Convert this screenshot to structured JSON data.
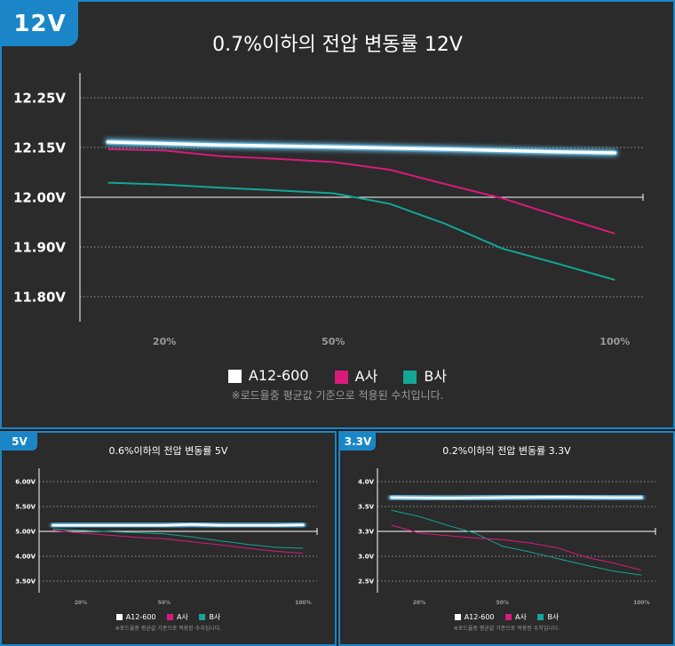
{
  "colors": {
    "a12": "#ffffff",
    "a12_glow": "#6fd0ff",
    "a_company": "#d81b7a",
    "b_company": "#13a596",
    "grid": "#bbbbbb",
    "badge": "#1a86c8",
    "text": "#ffffff",
    "muted": "#9a9a9a"
  },
  "legend": {
    "a12": "A12-600",
    "a_company": "A사",
    "b_company": "B사"
  },
  "footnote": "※로드율중 평균값 기준으로 적용된 수치입니다.",
  "panels": {
    "v12": {
      "badge": "12V",
      "title": "0.7%이하의 전압 변동률 12V"
    },
    "v5": {
      "badge": "5V",
      "title": "0.6%이하의 전압 변동률 5V"
    },
    "v33": {
      "badge": "3.3V",
      "title": "0.2%이하의 전압 변동률 3.3V"
    }
  },
  "chart_data": [
    {
      "type": "line",
      "title": "0.7%이하의 전압 변동률 12V",
      "y_ticks": [
        "12.25V",
        "12.15V",
        "12.00V",
        "11.90V",
        "11.80V"
      ],
      "y_tick_values": [
        12.25,
        12.15,
        12.0,
        11.9,
        11.8
      ],
      "x_ticks": [
        "20%",
        "50%",
        "100%"
      ],
      "x_tick_values": [
        20,
        50,
        100
      ],
      "xlim": [
        5,
        105
      ],
      "series": [
        {
          "name": "A12-600",
          "x": [
            10,
            30,
            50,
            70,
            90,
            100
          ],
          "y": [
            12.161,
            12.155,
            12.151,
            12.145,
            12.137,
            12.134
          ]
        },
        {
          "name": "A사",
          "x": [
            10,
            20,
            30,
            40,
            50,
            60,
            70,
            80,
            90,
            100
          ],
          "y": [
            12.145,
            12.141,
            12.124,
            12.116,
            12.106,
            12.083,
            12.039,
            11.998,
            11.962,
            11.927
          ]
        },
        {
          "name": "B사",
          "x": [
            10,
            20,
            30,
            40,
            50,
            60,
            70,
            80,
            90,
            100
          ],
          "y": [
            12.044,
            12.038,
            12.029,
            12.021,
            12.012,
            11.987,
            11.946,
            11.897,
            11.866,
            11.834
          ]
        }
      ]
    },
    {
      "type": "line",
      "title": "0.6%이하의 전압 변동률 5V",
      "y_ticks": [
        "6.00V",
        "5.50V",
        "5.00V",
        "4.00V",
        "3.50V"
      ],
      "x_ticks": [
        "20%",
        "50%",
        "100%"
      ],
      "x_tick_values": [
        20,
        50,
        100
      ],
      "xlim": [
        5,
        105
      ],
      "series": [
        {
          "name": "A12-600",
          "x": [
            10,
            30,
            50,
            60,
            70,
            80,
            90,
            100
          ],
          "y": [
            5.12,
            5.12,
            5.12,
            5.14,
            5.12,
            5.12,
            5.12,
            5.13
          ]
        },
        {
          "name": "A사",
          "x": [
            10,
            20,
            30,
            40,
            50,
            60,
            70,
            80,
            90,
            100
          ],
          "y": [
            5.02,
            4.94,
            4.85,
            4.76,
            4.7,
            4.58,
            4.46,
            4.32,
            4.2,
            4.12
          ]
        },
        {
          "name": "B사",
          "x": [
            10,
            20,
            30,
            40,
            50,
            60,
            70,
            80,
            90,
            100
          ],
          "y": [
            5.05,
            5.02,
            4.99,
            4.95,
            4.9,
            4.78,
            4.62,
            4.48,
            4.36,
            4.32
          ]
        }
      ]
    },
    {
      "type": "line",
      "title": "0.2%이하의 전압 변동률 3.3V",
      "y_ticks": [
        "4.0V",
        "3.5V",
        "3.3V",
        "3.0V",
        "2.5V"
      ],
      "x_ticks": [
        "20%",
        "50%",
        "100%"
      ],
      "x_tick_values": [
        20,
        50,
        100
      ],
      "xlim": [
        5,
        105
      ],
      "series": [
        {
          "name": "A12-600",
          "x": [
            10,
            30,
            50,
            70,
            90,
            100
          ],
          "y": [
            3.68,
            3.67,
            3.68,
            3.69,
            3.68,
            3.68
          ]
        },
        {
          "name": "A사",
          "x": [
            10,
            20,
            30,
            40,
            50,
            60,
            70,
            80,
            90,
            100
          ],
          "y": [
            3.35,
            3.28,
            3.25,
            3.22,
            3.2,
            3.16,
            3.1,
            2.98,
            2.86,
            2.72
          ]
        },
        {
          "name": "B사",
          "x": [
            10,
            20,
            30,
            40,
            50,
            60,
            70,
            80,
            90,
            100
          ],
          "y": [
            3.47,
            3.42,
            3.35,
            3.28,
            3.12,
            3.05,
            2.95,
            2.82,
            2.7,
            2.62
          ]
        }
      ]
    }
  ]
}
